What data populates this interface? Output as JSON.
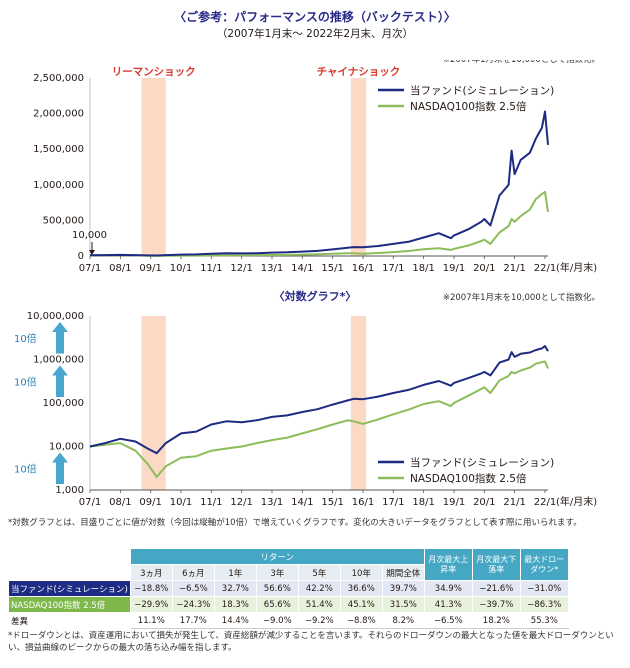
{
  "title": "〈ご参考：パフォーマンスの推移（バックテスト）〉",
  "subtitle": "（2007年1月末～ 2022年2月末、月次）",
  "chart_data": [
    {
      "type": "line",
      "title": "",
      "index_note": "※2007年1月末を10,000として指数化。",
      "y_scale": "linear",
      "ylim": [
        0,
        2500000
      ],
      "y_ticks": [
        "2,500,000",
        "2,000,000",
        "1,500,000",
        "1,000,000",
        "500,000",
        "0"
      ],
      "y_tick_values": [
        2500000,
        2000000,
        1500000,
        1000000,
        500000,
        0
      ],
      "x_ticks": [
        "07/1",
        "08/1",
        "09/1",
        "10/1",
        "11/1",
        "12/1",
        "13/1",
        "14/1",
        "15/1",
        "16/1",
        "17/1",
        "18/1",
        "19/1",
        "20/1",
        "21/1",
        "22/1"
      ],
      "xlabel": "(年/月末)",
      "start_annotation": "10,000",
      "shaded_periods": [
        {
          "label": "リーマンショック",
          "from": 2008.7,
          "to": 2009.5
        },
        {
          "label": "チャイナショック",
          "from": 2015.6,
          "to": 2016.1
        }
      ],
      "series": [
        {
          "name": "当ファンド(シミュレーション)",
          "color": "#1e2b82",
          "x": [
            2007.0,
            2007.5,
            2008.0,
            2008.5,
            2008.9,
            2009.2,
            2009.5,
            2010.0,
            2010.5,
            2011.0,
            2011.5,
            2012.0,
            2012.5,
            2013.0,
            2013.5,
            2014.0,
            2014.5,
            2015.0,
            2015.5,
            2015.7,
            2016.0,
            2016.5,
            2017.0,
            2017.5,
            2018.0,
            2018.5,
            2018.9,
            2019.0,
            2019.5,
            2019.9,
            2020.0,
            2020.2,
            2020.5,
            2020.8,
            2020.9,
            2021.0,
            2021.2,
            2021.5,
            2021.7,
            2021.9,
            2022.0,
            2022.1
          ],
          "y": [
            10000,
            12000,
            15000,
            13000,
            9000,
            7000,
            12000,
            20000,
            22000,
            32000,
            38000,
            36000,
            40000,
            48000,
            52000,
            62000,
            72000,
            92000,
            115000,
            125000,
            122000,
            140000,
            170000,
            200000,
            260000,
            320000,
            250000,
            290000,
            380000,
            480000,
            520000,
            430000,
            850000,
            1000000,
            1480000,
            1150000,
            1350000,
            1450000,
            1650000,
            1800000,
            2030000,
            1560000
          ]
        },
        {
          "name": "NASDAQ100指数 2.5倍",
          "color": "#8dbc5a",
          "x": [
            2007.0,
            2007.5,
            2008.0,
            2008.5,
            2008.9,
            2009.2,
            2009.5,
            2010.0,
            2010.5,
            2011.0,
            2011.5,
            2012.0,
            2012.5,
            2013.0,
            2013.5,
            2014.0,
            2014.5,
            2015.0,
            2015.5,
            2015.7,
            2016.0,
            2016.5,
            2017.0,
            2017.5,
            2018.0,
            2018.5,
            2018.9,
            2019.0,
            2019.5,
            2019.9,
            2020.0,
            2020.2,
            2020.5,
            2020.8,
            2020.9,
            2021.0,
            2021.2,
            2021.5,
            2021.7,
            2021.9,
            2022.0,
            2022.1
          ],
          "y": [
            10000,
            11000,
            12000,
            8000,
            4000,
            2000,
            3500,
            5500,
            6000,
            8000,
            9000,
            10000,
            12000,
            14000,
            16000,
            20000,
            25000,
            32000,
            40000,
            38000,
            33000,
            42000,
            55000,
            70000,
            95000,
            110000,
            85000,
            100000,
            150000,
            210000,
            230000,
            170000,
            330000,
            420000,
            520000,
            480000,
            560000,
            650000,
            800000,
            870000,
            900000,
            620000
          ]
        }
      ]
    },
    {
      "type": "line",
      "title": "〈対数グラフ*〉",
      "index_note": "※2007年1月末を10,000として指数化。",
      "y_scale": "log",
      "ylim": [
        1000,
        10000000
      ],
      "y_ticks": [
        "10,000,000",
        "1,000,000",
        "100,000",
        "10,000",
        "1,000"
      ],
      "y_tick_values": [
        10000000,
        1000000,
        100000,
        10000,
        1000
      ],
      "y_arrow_label": "10倍",
      "x_ticks": [
        "07/1",
        "08/1",
        "09/1",
        "10/1",
        "11/1",
        "12/1",
        "13/1",
        "14/1",
        "15/1",
        "16/1",
        "17/1",
        "18/1",
        "19/1",
        "20/1",
        "21/1",
        "22/1"
      ],
      "xlabel": "(年/月末)",
      "series_ref": "same as linear chart"
    }
  ],
  "log_note": "*対数グラフとは、目盛りごとに値が対数（今回は縦軸が10倍）で増えていくグラフです。変化の大きいデータをグラフとして表す際に用いられます。",
  "legend": {
    "fund": "当ファンド(シミュレーション)",
    "nasdaq": "NASDAQ100指数 2.5倍"
  },
  "table": {
    "group_header": "リターン",
    "period_headers": [
      "3ヵ月",
      "6ヵ月",
      "1年",
      "3年",
      "5年",
      "10年",
      "期間全体"
    ],
    "extra_headers": [
      "月次最大上昇率",
      "月次最大下落率",
      "最大ドローダウン*"
    ],
    "rows": [
      {
        "label": "当ファンド(シミュレーション)",
        "values": [
          "−18.8%",
          "−6.5%",
          "32.7%",
          "56.6%",
          "42.2%",
          "36.6%",
          "39.7%",
          "34.9%",
          "−21.6%",
          "−31.0%"
        ]
      },
      {
        "label": "NASDAQ100指数 2.5倍",
        "values": [
          "−29.9%",
          "−24.3%",
          "18.3%",
          "65.6%",
          "51.4%",
          "45.1%",
          "31.5%",
          "41.3%",
          "−39.7%",
          "−86.3%"
        ]
      },
      {
        "label": "差異",
        "values": [
          "11.1%",
          "17.7%",
          "14.4%",
          "−9.0%",
          "−9.2%",
          "−8.8%",
          "8.2%",
          "−6.5%",
          "18.2%",
          "55.3%"
        ]
      }
    ]
  },
  "footnote": "*ドローダウンとは、資産運用において損失が発生して、資産総額が減少することを言います。それらのドローダウンの最大となった値を最大ドローダウンといい、損益曲線のピークからの最大の落ち込み幅を指します。"
}
